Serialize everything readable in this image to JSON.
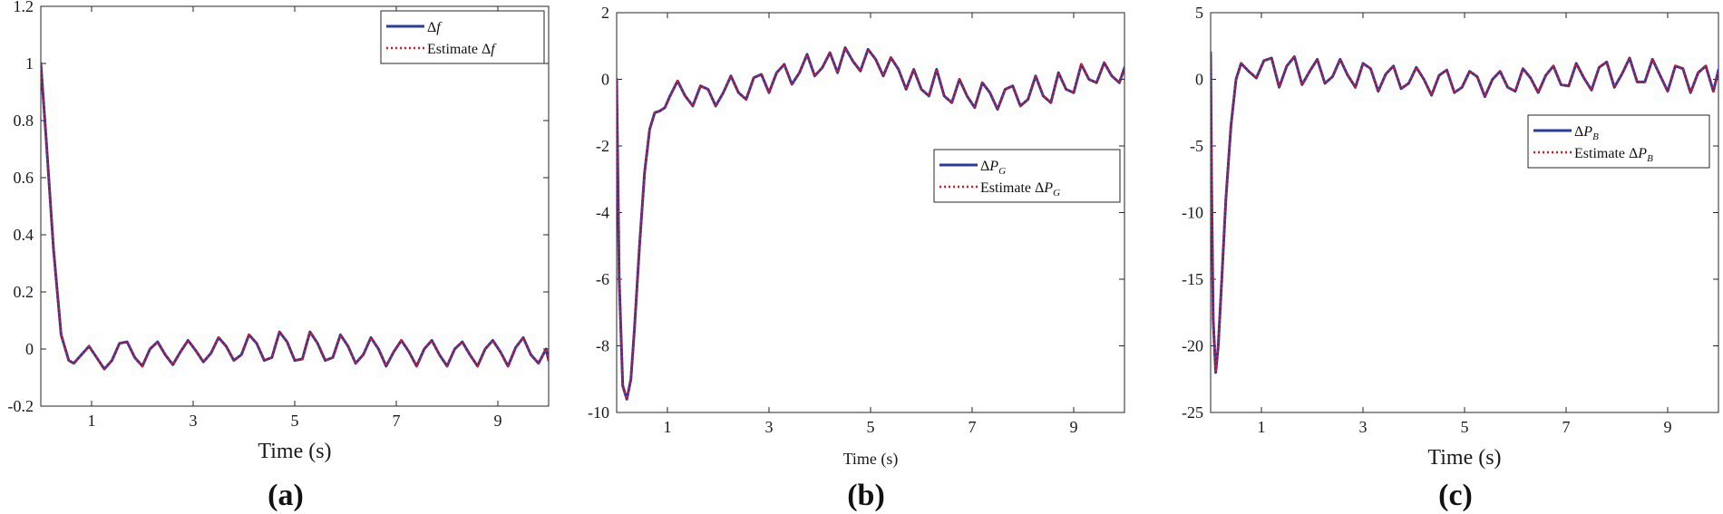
{
  "chart_data": [
    {
      "panel": "(a)",
      "type": "line",
      "xlabel": "Time (s)",
      "ylabel": "",
      "xlim": [
        0,
        10
      ],
      "ylim": [
        -0.2,
        1.2
      ],
      "xticks": [
        1,
        3,
        5,
        7,
        9
      ],
      "xtick_labels": [
        "1",
        "3",
        "5",
        "7",
        "9"
      ],
      "yticks": [
        -0.2,
        0,
        0.2,
        0.4,
        0.6,
        0.8,
        1.0,
        1.2
      ],
      "ytick_labels": [
        "-0.2",
        "0",
        "0.2",
        "0.4",
        "0.6",
        "0.8",
        "1",
        "1.2"
      ],
      "legend_position": "top-right",
      "series": [
        {
          "name": "Δf",
          "legend_main": "Δ",
          "legend_italic": "f",
          "legend_sub": "",
          "color": "#2b3a9e",
          "style": "solid",
          "x": [
            0,
            0.1,
            0.25,
            0.4,
            0.55,
            0.65,
            0.8,
            0.95,
            1.1,
            1.25,
            1.4,
            1.55,
            1.7,
            1.85,
            2.0,
            2.15,
            2.3,
            2.45,
            2.6,
            2.75,
            2.9,
            3.05,
            3.2,
            3.35,
            3.5,
            3.65,
            3.8,
            3.95,
            4.1,
            4.25,
            4.4,
            4.55,
            4.7,
            4.85,
            5.0,
            5.15,
            5.3,
            5.45,
            5.6,
            5.75,
            5.9,
            6.05,
            6.2,
            6.35,
            6.5,
            6.65,
            6.8,
            6.95,
            7.1,
            7.25,
            7.4,
            7.55,
            7.7,
            7.85,
            8.0,
            8.15,
            8.3,
            8.45,
            8.6,
            8.75,
            8.9,
            9.05,
            9.2,
            9.35,
            9.5,
            9.65,
            9.8,
            9.95,
            10.0
          ],
          "y": [
            1.0,
            0.75,
            0.35,
            0.05,
            -0.04,
            -0.05,
            -0.02,
            0.01,
            -0.03,
            -0.07,
            -0.04,
            0.02,
            0.025,
            -0.03,
            -0.06,
            0.0,
            0.025,
            -0.02,
            -0.055,
            -0.01,
            0.03,
            -0.005,
            -0.045,
            -0.015,
            0.04,
            0.01,
            -0.04,
            -0.02,
            0.05,
            0.02,
            -0.04,
            -0.03,
            0.06,
            0.025,
            -0.04,
            -0.035,
            0.06,
            0.02,
            -0.04,
            -0.03,
            0.05,
            0.01,
            -0.05,
            -0.02,
            0.04,
            0.0,
            -0.06,
            -0.01,
            0.03,
            -0.01,
            -0.06,
            0.0,
            0.03,
            -0.02,
            -0.06,
            0.0,
            0.025,
            -0.02,
            -0.06,
            0.0,
            0.03,
            -0.01,
            -0.06,
            0.005,
            0.04,
            -0.02,
            -0.05,
            0.0,
            -0.04
          ]
        },
        {
          "name": "Estimate Δf",
          "legend_main": "Estimate Δ",
          "legend_italic": "f",
          "legend_sub": "",
          "color": "#e8141c",
          "style": "dotted",
          "same_as": 0
        }
      ]
    },
    {
      "panel": "(b)",
      "type": "line",
      "xlabel": "Time (s)",
      "ylabel": "",
      "xlim": [
        0,
        10
      ],
      "ylim": [
        -10,
        2
      ],
      "xticks": [
        1,
        3,
        5,
        7,
        9
      ],
      "xtick_labels": [
        "1",
        "3",
        "5",
        "7",
        "9"
      ],
      "yticks": [
        -10,
        -8,
        -6,
        -4,
        -2,
        0,
        2
      ],
      "ytick_labels": [
        "-10",
        "-8",
        "-6",
        "-4",
        "-2",
        "0",
        "2"
      ],
      "legend_position": "middle-right",
      "series": [
        {
          "name": "ΔP_G",
          "legend_main": "Δ",
          "legend_italic": "P",
          "legend_sub": "G",
          "color": "#2b3a9e",
          "style": "solid",
          "x": [
            0,
            0.05,
            0.12,
            0.2,
            0.28,
            0.35,
            0.45,
            0.55,
            0.65,
            0.75,
            0.85,
            0.95,
            1.05,
            1.2,
            1.35,
            1.5,
            1.65,
            1.8,
            1.95,
            2.1,
            2.25,
            2.4,
            2.55,
            2.7,
            2.85,
            3.0,
            3.15,
            3.3,
            3.45,
            3.6,
            3.75,
            3.9,
            4.05,
            4.2,
            4.35,
            4.5,
            4.65,
            4.8,
            4.95,
            5.1,
            5.25,
            5.4,
            5.55,
            5.7,
            5.85,
            6.0,
            6.15,
            6.3,
            6.45,
            6.6,
            6.75,
            6.9,
            7.05,
            7.2,
            7.35,
            7.5,
            7.65,
            7.8,
            7.95,
            8.1,
            8.25,
            8.4,
            8.55,
            8.7,
            8.85,
            9.0,
            9.15,
            9.3,
            9.45,
            9.6,
            9.75,
            9.9,
            10.0
          ],
          "y": [
            0.0,
            -6.0,
            -9.2,
            -9.6,
            -9.0,
            -7.5,
            -5.0,
            -2.8,
            -1.5,
            -1.0,
            -0.95,
            -0.85,
            -0.5,
            -0.05,
            -0.5,
            -0.8,
            -0.2,
            -0.3,
            -0.8,
            -0.4,
            0.1,
            -0.4,
            -0.6,
            0.05,
            0.15,
            -0.4,
            0.2,
            0.45,
            -0.15,
            0.2,
            0.75,
            0.1,
            0.35,
            0.8,
            0.2,
            0.95,
            0.55,
            0.25,
            0.9,
            0.6,
            0.1,
            0.65,
            0.3,
            -0.3,
            0.3,
            -0.3,
            -0.5,
            0.3,
            -0.5,
            -0.7,
            0.0,
            -0.5,
            -0.85,
            -0.1,
            -0.4,
            -0.9,
            -0.3,
            -0.2,
            -0.8,
            -0.6,
            0.1,
            -0.5,
            -0.7,
            0.2,
            -0.3,
            -0.4,
            0.45,
            0.0,
            -0.1,
            0.5,
            0.1,
            -0.1,
            0.35
          ]
        },
        {
          "name": "Estimate ΔP_G",
          "legend_main": "Estimate Δ",
          "legend_italic": "P",
          "legend_sub": "G",
          "color": "#e8141c",
          "style": "dotted",
          "same_as": 0
        }
      ]
    },
    {
      "panel": "(c)",
      "type": "line",
      "xlabel": "Time (s)",
      "ylabel": "",
      "xlim": [
        0,
        10
      ],
      "ylim": [
        -25,
        5
      ],
      "xticks": [
        1,
        3,
        5,
        7,
        9
      ],
      "xtick_labels": [
        "1",
        "3",
        "5",
        "7",
        "9"
      ],
      "yticks": [
        -25,
        -20,
        -15,
        -10,
        -5,
        0,
        5
      ],
      "ytick_labels": [
        "-25",
        "-20",
        "-15",
        "-10",
        "-5",
        "0",
        "5"
      ],
      "legend_position": "middle-right",
      "series": [
        {
          "name": "ΔP_B",
          "legend_main": "Δ",
          "legend_italic": "P",
          "legend_sub": "B",
          "color": "#2b3a9e",
          "style": "solid",
          "x": [
            0,
            0.02,
            0.05,
            0.1,
            0.15,
            0.22,
            0.3,
            0.4,
            0.5,
            0.6,
            0.75,
            0.9,
            1.05,
            1.2,
            1.35,
            1.5,
            1.65,
            1.8,
            1.95,
            2.1,
            2.25,
            2.4,
            2.55,
            2.7,
            2.85,
            3.0,
            3.15,
            3.3,
            3.45,
            3.6,
            3.75,
            3.9,
            4.05,
            4.2,
            4.35,
            4.5,
            4.65,
            4.8,
            4.95,
            5.1,
            5.25,
            5.4,
            5.55,
            5.7,
            5.85,
            6.0,
            6.15,
            6.3,
            6.45,
            6.6,
            6.75,
            6.9,
            7.05,
            7.2,
            7.35,
            7.5,
            7.65,
            7.8,
            7.95,
            8.1,
            8.25,
            8.4,
            8.55,
            8.7,
            8.85,
            9.0,
            9.15,
            9.3,
            9.45,
            9.6,
            9.75,
            9.9,
            10.0
          ],
          "y": [
            2.0,
            -8.0,
            -18.0,
            -22.0,
            -20.0,
            -15.0,
            -9.0,
            -3.5,
            0.0,
            1.2,
            0.6,
            0.1,
            1.4,
            1.6,
            -0.6,
            1.0,
            1.7,
            -0.4,
            0.6,
            1.5,
            -0.3,
            0.2,
            1.5,
            0.3,
            -0.6,
            1.2,
            0.8,
            -0.9,
            0.4,
            1.0,
            -0.7,
            -0.3,
            0.9,
            0.0,
            -1.2,
            0.3,
            0.7,
            -1.0,
            -0.6,
            0.6,
            0.2,
            -1.3,
            0.0,
            0.6,
            -0.6,
            -0.9,
            0.8,
            0.1,
            -1.0,
            0.3,
            1.0,
            -0.4,
            -0.5,
            1.2,
            0.1,
            -0.8,
            0.9,
            1.3,
            -0.6,
            0.4,
            1.6,
            -0.2,
            -0.2,
            1.5,
            0.3,
            -0.9,
            1.0,
            0.8,
            -1.0,
            0.5,
            1.0,
            -0.9,
            0.7
          ]
        },
        {
          "name": "Estimate ΔP_B",
          "legend_main": "Estimate Δ",
          "legend_italic": "P",
          "legend_sub": "B",
          "color": "#e8141c",
          "style": "dotted",
          "same_as": 0
        }
      ]
    }
  ]
}
